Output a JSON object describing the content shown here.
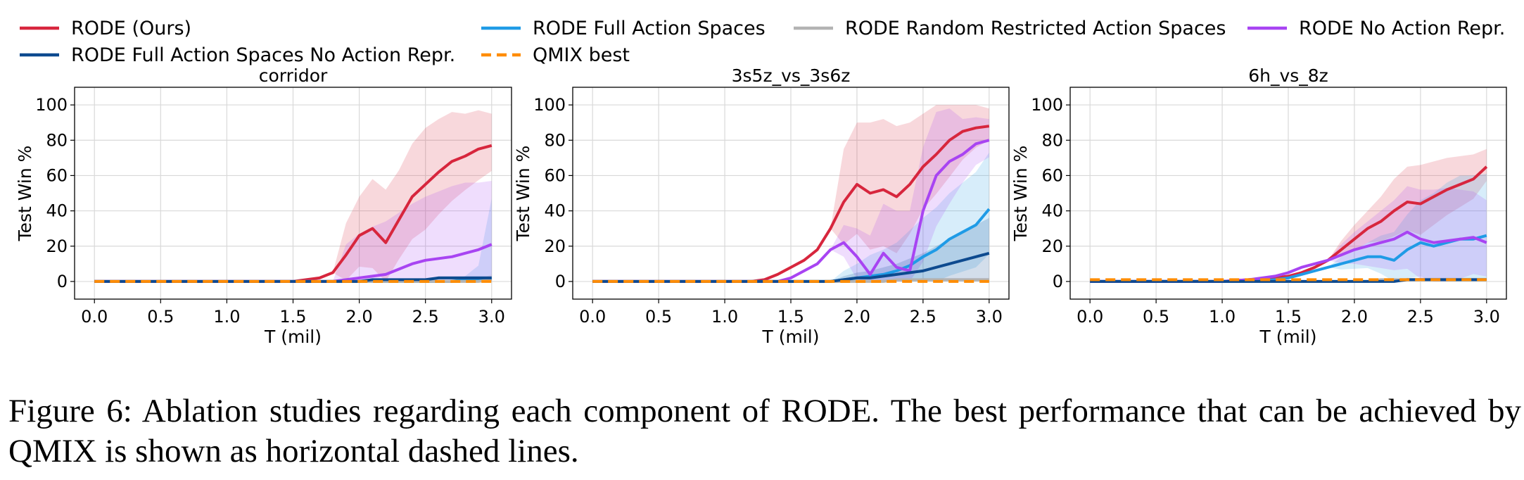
{
  "legend": [
    {
      "label": "RODE (Ours)",
      "color": "#d7263d",
      "dashed": false
    },
    {
      "label": "RODE Full Action Spaces",
      "color": "#1f9be6",
      "dashed": false
    },
    {
      "label": "RODE Random Restricted Action Spaces",
      "color": "#b3b3b3",
      "dashed": false
    },
    {
      "label": "RODE No Action Repr.",
      "color": "#a844f2",
      "dashed": false
    },
    {
      "label": "RODE Full Action Spaces No Action Repr.",
      "color": "#0d4a8f",
      "dashed": false
    },
    {
      "label": "QMIX best",
      "color": "#ff8c00",
      "dashed": true
    }
  ],
  "caption": "Figure 6: Ablation studies regarding each component of RODE. The best performance that can be achieved by QMIX is shown as horizontal dashed lines.",
  "chart_data": [
    {
      "type": "line",
      "title": "corridor",
      "xlabel": "T (mil)",
      "ylabel": "Test Win %",
      "xlim": [
        0,
        3.0
      ],
      "ylim": [
        -10,
        110
      ],
      "xticks": [
        "0.0",
        "0.5",
        "1.0",
        "1.5",
        "2.0",
        "2.5",
        "3.0"
      ],
      "yticks": [
        "0",
        "20",
        "40",
        "60",
        "80",
        "100"
      ],
      "grid": true,
      "x": [
        0,
        0.2,
        0.4,
        0.6,
        0.8,
        1.0,
        1.2,
        1.4,
        1.5,
        1.6,
        1.7,
        1.8,
        1.9,
        2.0,
        2.1,
        2.2,
        2.3,
        2.4,
        2.5,
        2.6,
        2.7,
        2.8,
        2.9,
        3.0
      ],
      "series": [
        {
          "name": "RODE (Ours)",
          "values": [
            0,
            0,
            0,
            0,
            0,
            0,
            0,
            0,
            0,
            1,
            2,
            5,
            15,
            26,
            30,
            22,
            35,
            48,
            55,
            62,
            68,
            71,
            75,
            77
          ],
          "band": [
            18,
            22,
            28,
            30,
            28,
            30,
            32,
            30,
            28,
            24,
            22,
            18
          ]
        },
        {
          "name": "RODE Full Action Spaces",
          "values": [
            0,
            0,
            0,
            0,
            0,
            0,
            0,
            0,
            0,
            0,
            0,
            0,
            0,
            0,
            0,
            0,
            0,
            0,
            0,
            0,
            0,
            1,
            1,
            2
          ],
          "band": [
            0,
            0,
            0,
            0,
            0,
            0,
            0,
            0,
            1,
            2,
            8,
            45
          ]
        },
        {
          "name": "RODE Random Restricted Action Spaces",
          "values": [
            0,
            0,
            0,
            0,
            0,
            0,
            0,
            0,
            0,
            0,
            0,
            0,
            0,
            0,
            0,
            0,
            0,
            0,
            0,
            0,
            0,
            0,
            0,
            1
          ],
          "band": [
            0,
            0,
            0,
            0,
            0,
            0,
            0,
            0,
            0,
            0,
            1,
            3
          ]
        },
        {
          "name": "RODE No Action Repr.",
          "values": [
            0,
            0,
            0,
            0,
            0,
            0,
            0,
            0,
            0,
            0,
            0,
            0,
            1,
            2,
            3,
            4,
            7,
            10,
            12,
            13,
            14,
            16,
            18,
            21
          ],
          "band": [
            20,
            25,
            28,
            30,
            32,
            34,
            36,
            38,
            40,
            40,
            38,
            36
          ]
        },
        {
          "name": "RODE Full Action Spaces No Action Repr.",
          "values": [
            0,
            0,
            0,
            0,
            0,
            0,
            0,
            0,
            0,
            0,
            0,
            0,
            0,
            0,
            1,
            1,
            1,
            1,
            1,
            2,
            2,
            2,
            2,
            2
          ],
          "band": [
            0,
            0,
            0,
            0,
            0,
            0,
            0,
            1,
            1,
            1,
            1,
            1
          ]
        },
        {
          "name": "QMIX best",
          "values": [
            0,
            0,
            0,
            0,
            0,
            0,
            0,
            0,
            0,
            0,
            0,
            0,
            0,
            0,
            0,
            0,
            0,
            0,
            0,
            0,
            0,
            0,
            0,
            0
          ],
          "band": [
            0,
            0,
            0,
            0,
            0,
            0,
            0,
            0,
            0,
            0,
            0,
            0
          ]
        }
      ]
    },
    {
      "type": "line",
      "title": "3s5z_vs_3s6z",
      "xlabel": "T (mil)",
      "ylabel": "Test Win %",
      "xlim": [
        0,
        3.0
      ],
      "ylim": [
        -10,
        110
      ],
      "xticks": [
        "0.0",
        "0.5",
        "1.0",
        "1.5",
        "2.0",
        "2.5",
        "3.0"
      ],
      "yticks": [
        "0",
        "20",
        "40",
        "60",
        "80",
        "100"
      ],
      "grid": true,
      "x": [
        0,
        0.2,
        0.4,
        0.6,
        0.8,
        1.0,
        1.2,
        1.3,
        1.4,
        1.5,
        1.6,
        1.7,
        1.8,
        1.9,
        2.0,
        2.1,
        2.2,
        2.3,
        2.4,
        2.5,
        2.6,
        2.7,
        2.8,
        2.9,
        3.0
      ],
      "series": [
        {
          "name": "RODE (Ours)",
          "values": [
            0,
            0,
            0,
            0,
            0,
            0,
            0,
            1,
            4,
            8,
            12,
            18,
            30,
            45,
            55,
            50,
            52,
            48,
            55,
            65,
            72,
            80,
            85,
            87,
            88
          ],
          "band": [
            30,
            35,
            40,
            40,
            40,
            35,
            30,
            28,
            26,
            20,
            14,
            10,
            8
          ]
        },
        {
          "name": "RODE Full Action Spaces",
          "values": [
            0,
            0,
            0,
            0,
            0,
            0,
            0,
            0,
            0,
            0,
            0,
            0,
            0,
            1,
            2,
            3,
            4,
            6,
            9,
            14,
            18,
            24,
            28,
            32,
            41
          ],
          "band": [
            5,
            8,
            12,
            14,
            16,
            20,
            22,
            24,
            26,
            28,
            30,
            32
          ]
        },
        {
          "name": "RODE Random Restricted Action Spaces",
          "values": [
            0,
            0,
            0,
            0,
            0,
            0,
            0,
            0,
            0,
            0,
            0,
            0,
            0,
            0,
            0,
            0,
            0,
            1,
            1,
            1,
            1,
            1,
            1,
            1,
            1
          ],
          "band": [
            0,
            0,
            0,
            0,
            0,
            0,
            1,
            1,
            1,
            1,
            1,
            1
          ]
        },
        {
          "name": "RODE No Action Repr.",
          "values": [
            0,
            0,
            0,
            0,
            0,
            0,
            0,
            0,
            0,
            2,
            6,
            10,
            18,
            22,
            14,
            4,
            16,
            8,
            6,
            40,
            60,
            68,
            72,
            78,
            80
          ],
          "band": [
            10,
            16,
            22,
            28,
            32,
            34,
            36,
            36,
            30,
            20,
            15,
            12
          ]
        },
        {
          "name": "RODE Full Action Spaces No Action Repr.",
          "values": [
            0,
            0,
            0,
            0,
            0,
            0,
            0,
            0,
            0,
            0,
            0,
            0,
            0,
            1,
            2,
            2,
            3,
            4,
            5,
            6,
            8,
            10,
            12,
            14,
            16
          ],
          "band": [
            2,
            3,
            4,
            5,
            6,
            8,
            10,
            12,
            14,
            16,
            18,
            20
          ]
        },
        {
          "name": "QMIX best",
          "values": [
            0,
            0,
            0,
            0,
            0,
            0,
            0,
            0,
            0,
            0,
            0,
            0,
            0,
            0,
            0,
            0,
            0,
            0,
            0,
            0,
            0,
            0,
            0,
            0,
            0
          ],
          "band": [
            0,
            0,
            0,
            0,
            0,
            0,
            0,
            0,
            0,
            0,
            0,
            0
          ]
        }
      ]
    },
    {
      "type": "line",
      "title": "6h_vs_8z",
      "xlabel": "T (mil)",
      "ylabel": "Test Win %",
      "xlim": [
        0,
        3.0
      ],
      "ylim": [
        -10,
        110
      ],
      "xticks": [
        "0.0",
        "0.5",
        "1.0",
        "1.5",
        "2.0",
        "2.5",
        "3.0"
      ],
      "yticks": [
        "0",
        "20",
        "40",
        "60",
        "80",
        "100"
      ],
      "grid": true,
      "x": [
        0,
        0.2,
        0.4,
        0.6,
        0.8,
        1.0,
        1.2,
        1.4,
        1.5,
        1.6,
        1.7,
        1.8,
        1.9,
        2.0,
        2.1,
        2.2,
        2.3,
        2.4,
        2.5,
        2.6,
        2.7,
        2.8,
        2.9,
        3.0
      ],
      "series": [
        {
          "name": "RODE (Ours)",
          "values": [
            0,
            0,
            0,
            0,
            0,
            0,
            1,
            2,
            3,
            5,
            8,
            12,
            18,
            24,
            30,
            34,
            40,
            45,
            44,
            48,
            52,
            55,
            58,
            65
          ],
          "band": [
            5,
            8,
            10,
            14,
            18,
            20,
            22,
            20,
            18,
            16,
            14,
            10
          ]
        },
        {
          "name": "RODE Full Action Spaces",
          "values": [
            0,
            0,
            0,
            0,
            0,
            0,
            0,
            1,
            2,
            4,
            6,
            8,
            10,
            12,
            14,
            14,
            12,
            18,
            22,
            20,
            22,
            24,
            24,
            26
          ],
          "band": [
            4,
            6,
            8,
            12,
            16,
            20,
            24,
            30,
            34,
            36,
            36,
            35
          ]
        },
        {
          "name": "RODE Random Restricted Action Spaces",
          "values": [
            0,
            0,
            0,
            0,
            0,
            0,
            0,
            0,
            0,
            0,
            0,
            0,
            0,
            0,
            0,
            1,
            1,
            1,
            1,
            1,
            1,
            1,
            1,
            1
          ],
          "band": [
            0,
            0,
            0,
            0,
            0,
            1,
            1,
            1,
            1,
            1,
            1,
            1
          ]
        },
        {
          "name": "RODE No Action Repr.",
          "values": [
            0,
            0,
            0,
            0,
            0,
            0,
            1,
            3,
            5,
            8,
            10,
            12,
            15,
            18,
            20,
            22,
            24,
            28,
            24,
            22,
            23,
            24,
            25,
            22
          ],
          "band": [
            6,
            10,
            14,
            18,
            22,
            26,
            28,
            30,
            30,
            28,
            26,
            24
          ]
        },
        {
          "name": "RODE Full Action Spaces No Action Repr.",
          "values": [
            0,
            0,
            0,
            0,
            0,
            0,
            0,
            0,
            0,
            0,
            0,
            0,
            0,
            0,
            0,
            0,
            0,
            1,
            1,
            1,
            1,
            1,
            1,
            1
          ],
          "band": [
            0,
            0,
            0,
            0,
            0,
            1,
            1,
            1,
            1,
            1,
            1,
            1
          ]
        },
        {
          "name": "QMIX best",
          "values": [
            1,
            1,
            1,
            1,
            1,
            1,
            1,
            1,
            1,
            1,
            1,
            1,
            1,
            1,
            1,
            1,
            1,
            1,
            1,
            1,
            1,
            1,
            1,
            1
          ],
          "band": [
            0,
            0,
            0,
            0,
            0,
            0,
            0,
            0,
            0,
            0,
            0,
            0
          ]
        }
      ]
    }
  ]
}
